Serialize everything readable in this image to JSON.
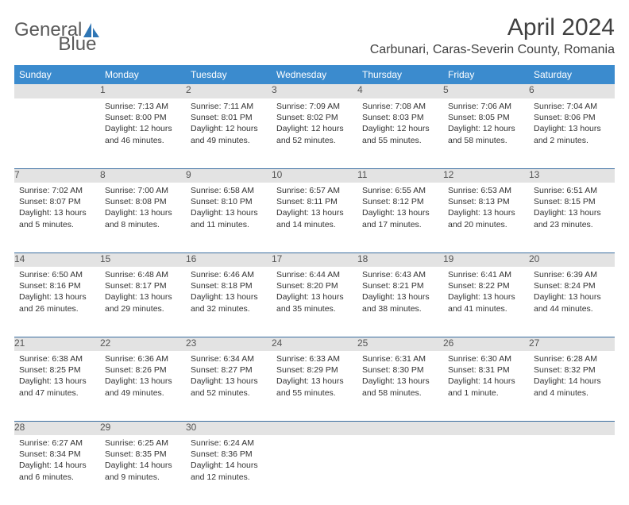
{
  "brand": {
    "part1": "General",
    "part2": "Blue",
    "logo_color": "#2f76b5"
  },
  "title": "April 2024",
  "location": "Carbunari, Caras-Severin County, Romania",
  "colors": {
    "header_bg": "#3b8bce",
    "header_text": "#ffffff",
    "daynum_bg": "#e3e3e3",
    "row_border": "#3b6ea0",
    "text": "#333333"
  },
  "daysOfWeek": [
    "Sunday",
    "Monday",
    "Tuesday",
    "Wednesday",
    "Thursday",
    "Friday",
    "Saturday"
  ],
  "weeks": [
    [
      {
        "n": "",
        "lines": []
      },
      {
        "n": "1",
        "lines": [
          "Sunrise: 7:13 AM",
          "Sunset: 8:00 PM",
          "Daylight: 12 hours",
          "and 46 minutes."
        ]
      },
      {
        "n": "2",
        "lines": [
          "Sunrise: 7:11 AM",
          "Sunset: 8:01 PM",
          "Daylight: 12 hours",
          "and 49 minutes."
        ]
      },
      {
        "n": "3",
        "lines": [
          "Sunrise: 7:09 AM",
          "Sunset: 8:02 PM",
          "Daylight: 12 hours",
          "and 52 minutes."
        ]
      },
      {
        "n": "4",
        "lines": [
          "Sunrise: 7:08 AM",
          "Sunset: 8:03 PM",
          "Daylight: 12 hours",
          "and 55 minutes."
        ]
      },
      {
        "n": "5",
        "lines": [
          "Sunrise: 7:06 AM",
          "Sunset: 8:05 PM",
          "Daylight: 12 hours",
          "and 58 minutes."
        ]
      },
      {
        "n": "6",
        "lines": [
          "Sunrise: 7:04 AM",
          "Sunset: 8:06 PM",
          "Daylight: 13 hours",
          "and 2 minutes."
        ]
      }
    ],
    [
      {
        "n": "7",
        "lines": [
          "Sunrise: 7:02 AM",
          "Sunset: 8:07 PM",
          "Daylight: 13 hours",
          "and 5 minutes."
        ]
      },
      {
        "n": "8",
        "lines": [
          "Sunrise: 7:00 AM",
          "Sunset: 8:08 PM",
          "Daylight: 13 hours",
          "and 8 minutes."
        ]
      },
      {
        "n": "9",
        "lines": [
          "Sunrise: 6:58 AM",
          "Sunset: 8:10 PM",
          "Daylight: 13 hours",
          "and 11 minutes."
        ]
      },
      {
        "n": "10",
        "lines": [
          "Sunrise: 6:57 AM",
          "Sunset: 8:11 PM",
          "Daylight: 13 hours",
          "and 14 minutes."
        ]
      },
      {
        "n": "11",
        "lines": [
          "Sunrise: 6:55 AM",
          "Sunset: 8:12 PM",
          "Daylight: 13 hours",
          "and 17 minutes."
        ]
      },
      {
        "n": "12",
        "lines": [
          "Sunrise: 6:53 AM",
          "Sunset: 8:13 PM",
          "Daylight: 13 hours",
          "and 20 minutes."
        ]
      },
      {
        "n": "13",
        "lines": [
          "Sunrise: 6:51 AM",
          "Sunset: 8:15 PM",
          "Daylight: 13 hours",
          "and 23 minutes."
        ]
      }
    ],
    [
      {
        "n": "14",
        "lines": [
          "Sunrise: 6:50 AM",
          "Sunset: 8:16 PM",
          "Daylight: 13 hours",
          "and 26 minutes."
        ]
      },
      {
        "n": "15",
        "lines": [
          "Sunrise: 6:48 AM",
          "Sunset: 8:17 PM",
          "Daylight: 13 hours",
          "and 29 minutes."
        ]
      },
      {
        "n": "16",
        "lines": [
          "Sunrise: 6:46 AM",
          "Sunset: 8:18 PM",
          "Daylight: 13 hours",
          "and 32 minutes."
        ]
      },
      {
        "n": "17",
        "lines": [
          "Sunrise: 6:44 AM",
          "Sunset: 8:20 PM",
          "Daylight: 13 hours",
          "and 35 minutes."
        ]
      },
      {
        "n": "18",
        "lines": [
          "Sunrise: 6:43 AM",
          "Sunset: 8:21 PM",
          "Daylight: 13 hours",
          "and 38 minutes."
        ]
      },
      {
        "n": "19",
        "lines": [
          "Sunrise: 6:41 AM",
          "Sunset: 8:22 PM",
          "Daylight: 13 hours",
          "and 41 minutes."
        ]
      },
      {
        "n": "20",
        "lines": [
          "Sunrise: 6:39 AM",
          "Sunset: 8:24 PM",
          "Daylight: 13 hours",
          "and 44 minutes."
        ]
      }
    ],
    [
      {
        "n": "21",
        "lines": [
          "Sunrise: 6:38 AM",
          "Sunset: 8:25 PM",
          "Daylight: 13 hours",
          "and 47 minutes."
        ]
      },
      {
        "n": "22",
        "lines": [
          "Sunrise: 6:36 AM",
          "Sunset: 8:26 PM",
          "Daylight: 13 hours",
          "and 49 minutes."
        ]
      },
      {
        "n": "23",
        "lines": [
          "Sunrise: 6:34 AM",
          "Sunset: 8:27 PM",
          "Daylight: 13 hours",
          "and 52 minutes."
        ]
      },
      {
        "n": "24",
        "lines": [
          "Sunrise: 6:33 AM",
          "Sunset: 8:29 PM",
          "Daylight: 13 hours",
          "and 55 minutes."
        ]
      },
      {
        "n": "25",
        "lines": [
          "Sunrise: 6:31 AM",
          "Sunset: 8:30 PM",
          "Daylight: 13 hours",
          "and 58 minutes."
        ]
      },
      {
        "n": "26",
        "lines": [
          "Sunrise: 6:30 AM",
          "Sunset: 8:31 PM",
          "Daylight: 14 hours",
          "and 1 minute."
        ]
      },
      {
        "n": "27",
        "lines": [
          "Sunrise: 6:28 AM",
          "Sunset: 8:32 PM",
          "Daylight: 14 hours",
          "and 4 minutes."
        ]
      }
    ],
    [
      {
        "n": "28",
        "lines": [
          "Sunrise: 6:27 AM",
          "Sunset: 8:34 PM",
          "Daylight: 14 hours",
          "and 6 minutes."
        ]
      },
      {
        "n": "29",
        "lines": [
          "Sunrise: 6:25 AM",
          "Sunset: 8:35 PM",
          "Daylight: 14 hours",
          "and 9 minutes."
        ]
      },
      {
        "n": "30",
        "lines": [
          "Sunrise: 6:24 AM",
          "Sunset: 8:36 PM",
          "Daylight: 14 hours",
          "and 12 minutes."
        ]
      },
      {
        "n": "",
        "lines": []
      },
      {
        "n": "",
        "lines": []
      },
      {
        "n": "",
        "lines": []
      },
      {
        "n": "",
        "lines": []
      }
    ]
  ]
}
